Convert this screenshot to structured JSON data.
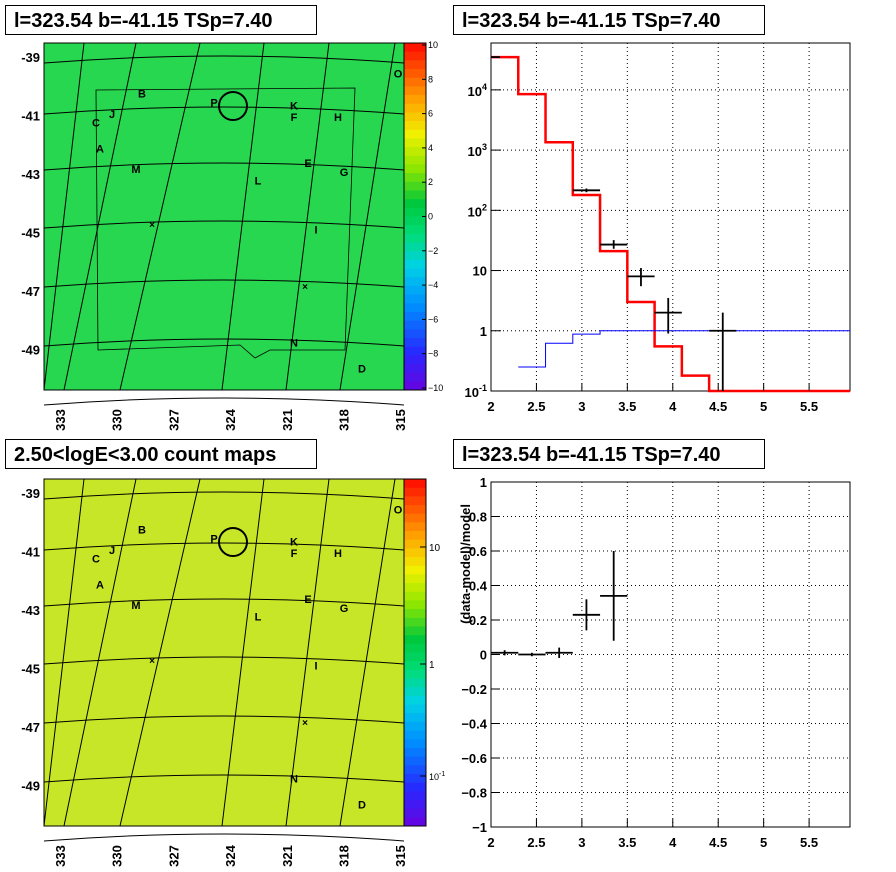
{
  "panels": {
    "top_left_title": "l=323.54 b=-41.15 TSp=7.40",
    "top_right_title": "l=323.54 b=-41.15 TSp=7.40",
    "bottom_left_title": "2.50<logE<3.00 count maps",
    "bottom_right_title": "l=323.54 b=-41.15 TSp=7.40"
  },
  "chart_data": [
    {
      "type": "heatmap",
      "title": "l=323.54 b=-41.15 TSp=7.40",
      "x_ticks": [
        "333",
        "330",
        "327",
        "324",
        "321",
        "318",
        "315"
      ],
      "y_ticks": [
        "-39",
        "-41",
        "-43",
        "-45",
        "-47",
        "-49"
      ],
      "colorbar_ticks": [
        "10",
        "8",
        "6",
        "4",
        "2",
        "0",
        "−2",
        "−4",
        "−6",
        "−8",
        "−10"
      ],
      "zlim": [
        -10,
        10
      ],
      "sources": [
        {
          "label": "O",
          "l": 315.8,
          "b": -39.5
        },
        {
          "label": "B",
          "l": 328.6,
          "b": -40.2
        },
        {
          "label": "P",
          "l": 325.0,
          "b": -40.5
        },
        {
          "label": "K",
          "l": 321.0,
          "b": -40.6
        },
        {
          "label": "C",
          "l": 330.9,
          "b": -41.2
        },
        {
          "label": "J",
          "l": 330.1,
          "b": -40.9
        },
        {
          "label": "F",
          "l": 321.0,
          "b": -41.0
        },
        {
          "label": "H",
          "l": 318.8,
          "b": -41.0
        },
        {
          "label": "A",
          "l": 330.7,
          "b": -42.1
        },
        {
          "label": "M",
          "l": 328.9,
          "b": -42.8
        },
        {
          "label": "E",
          "l": 320.3,
          "b": -42.6
        },
        {
          "label": "G",
          "l": 318.5,
          "b": -42.9
        },
        {
          "label": "L",
          "l": 322.8,
          "b": -43.2
        },
        {
          "label": "I",
          "l": 319.9,
          "b": -44.9
        },
        {
          "label": "N",
          "l": 321.0,
          "b": -48.8
        },
        {
          "label": "D",
          "l": 317.6,
          "b": -49.7
        }
      ],
      "target": {
        "l": 323.54,
        "b": -41.15
      }
    },
    {
      "type": "line",
      "title": "l=323.54 b=-41.15 TSp=7.40",
      "x_ticks": [
        "2",
        "2.5",
        "3",
        "3.5",
        "4",
        "4.5",
        "5",
        "5.5"
      ],
      "y_ticks": [
        "10^-1",
        "1",
        "10",
        "10^2",
        "10^3",
        "10^4"
      ],
      "xlim": [
        2,
        5.95
      ],
      "ylim": [
        0.1,
        60000
      ],
      "log_y": true,
      "grid": true,
      "series": [
        {
          "style": "step",
          "color": "#ff0000",
          "edges": [
            2,
            2.3,
            2.6,
            2.9,
            3.2,
            3.5,
            3.8,
            4.1,
            4.4,
            5.95
          ],
          "values": [
            35000,
            8500,
            1350,
            180,
            21,
            3.0,
            0.55,
            0.18,
            0.1
          ]
        },
        {
          "style": "step",
          "color": "#0000ff",
          "edges": [
            2.3,
            2.6,
            2.9,
            3.2,
            5.95
          ],
          "values": [
            0.25,
            0.62,
            0.88,
            1.0
          ]
        },
        {
          "style": "errorbar",
          "color": "#000000",
          "x": [
            2.05,
            3.05,
            3.35,
            3.65,
            3.95,
            4.55
          ],
          "xerr": [
            0.05,
            0.15,
            0.15,
            0.15,
            0.15,
            0.15
          ],
          "y": [
            35000,
            215,
            27,
            8,
            2,
            1
          ],
          "ylo": [
            34000,
            200,
            23,
            5.5,
            0.9,
            0.1
          ],
          "yhi": [
            36000,
            230,
            32,
            11,
            3.5,
            2
          ]
        }
      ]
    },
    {
      "type": "heatmap",
      "title": "2.50<logE<3.00 count maps",
      "x_ticks": [
        "333",
        "330",
        "327",
        "324",
        "321",
        "318",
        "315"
      ],
      "y_ticks": [
        "-39",
        "-41",
        "-43",
        "-45",
        "-47",
        "-49"
      ],
      "colorbar_ticks": [
        "10",
        "1",
        "10^-1"
      ],
      "log_z": true
    },
    {
      "type": "scatter",
      "title": "l=323.54 b=-41.15 TSp=7.40",
      "ylabel": "(data-model)/model",
      "x_ticks": [
        "2",
        "2.5",
        "3",
        "3.5",
        "4",
        "4.5",
        "5",
        "5.5"
      ],
      "y_ticks": [
        "1",
        "0.8",
        "0.6",
        "0.4",
        "0.2",
        "0",
        "−0.2",
        "−0.4",
        "−0.6",
        "−0.8",
        "−1"
      ],
      "xlim": [
        2,
        5.95
      ],
      "ylim": [
        -1,
        1
      ],
      "grid": true,
      "points": [
        {
          "x": 2.15,
          "xerr": 0.15,
          "y": 0.01,
          "yerr": 0.015
        },
        {
          "x": 2.45,
          "xerr": 0.15,
          "y": 0.0,
          "yerr": 0.01
        },
        {
          "x": 2.75,
          "xerr": 0.15,
          "y": 0.01,
          "yerr": 0.03
        },
        {
          "x": 3.05,
          "xerr": 0.15,
          "y": 0.23,
          "yerr": 0.09
        },
        {
          "x": 3.35,
          "xerr": 0.15,
          "y": 0.34,
          "yerr": 0.26
        }
      ]
    }
  ]
}
